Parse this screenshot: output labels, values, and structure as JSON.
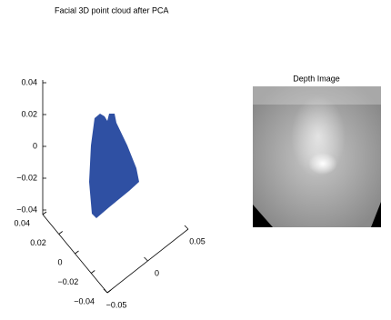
{
  "chart_data": [
    {
      "type": "scatter3d",
      "title": "Facial 3D point cloud after PCA",
      "color": "#2f50a3",
      "zlim": [
        -0.04,
        0.04
      ],
      "zticks": [
        0.04,
        0.02,
        0,
        {
          "value": -0.02,
          "label": "−0.02"
        },
        {
          "value": -0.04,
          "label": "−0.04"
        }
      ],
      "xlim": [
        -0.04,
        0.04
      ],
      "xticks": [
        0.04,
        0.02,
        0,
        {
          "value": -0.02,
          "label": "−0.02"
        },
        {
          "value": -0.04,
          "label": "−0.04"
        }
      ],
      "ylim": [
        -0.05,
        0.05
      ],
      "yticks": [
        {
          "value": -0.05,
          "label": "−0.05"
        },
        0,
        0.05
      ]
    },
    {
      "type": "image",
      "title": "Depth Image"
    }
  ]
}
